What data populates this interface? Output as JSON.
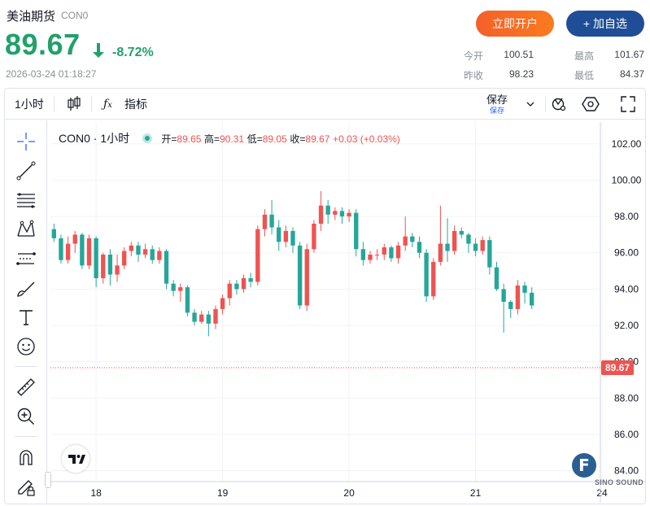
{
  "header": {
    "name": "美油期货",
    "code": "CON0",
    "price": "89.67",
    "change_pct": "-8.72%",
    "timestamp": "2026-03-24 01:18:27",
    "open_account_label": "立即开户",
    "add_watch_label": "+ 加自选",
    "stats": {
      "open_label": "今开",
      "open_value": "100.51",
      "prev_close_label": "昨收",
      "prev_close_value": "98.23",
      "high_label": "最高",
      "high_value": "101.67",
      "low_label": "最低",
      "low_value": "84.37"
    }
  },
  "toolbar": {
    "interval_label": "1小时",
    "indicators_label": "指标",
    "save_label": "保存",
    "save_sub_label": "保存"
  },
  "legend": {
    "symbol": "CON0 · 1小时",
    "open_label": "开=",
    "open_value": "89.65",
    "high_label": "高=",
    "high_value": "90.31",
    "low_label": "低=",
    "low_value": "89.05",
    "close_label": "收=",
    "close_value": "89.67",
    "change": "+0.03 (+0.03%)"
  },
  "watermark": {
    "brand_letter": "F",
    "brand_text": "SINO SOUND"
  },
  "colors": {
    "up": "#ef5350",
    "down": "#26a69a",
    "price_green": "#22a06b",
    "accent_orange": "#f3602b",
    "accent_blue": "#1f4e96"
  },
  "icons": [
    "crosshair-icon",
    "trend-line-icon",
    "fib-icon",
    "pattern-icon",
    "projection-icon",
    "brush-icon",
    "text-icon",
    "emoji-icon",
    "ruler-icon",
    "zoom-icon",
    "magnet-icon",
    "lock-pencil-icon",
    "candles-icon",
    "fx-icon",
    "chevron-down-icon",
    "camera-settings-icon",
    "hexagon-icon",
    "fullscreen-icon",
    "arrow-down-icon"
  ],
  "chart_data": {
    "type": "candlestick",
    "y_ticks": [
      "102.00",
      "100.00",
      "98.00",
      "96.00",
      "94.00",
      "92.00",
      "90.00",
      "88.00",
      "86.00",
      "84.00"
    ],
    "ylim": [
      83.4,
      103.2
    ],
    "x_ticks": [
      {
        "label": "18",
        "i": 6
      },
      {
        "label": "19",
        "i": 24
      },
      {
        "label": "20",
        "i": 42
      },
      {
        "label": "21",
        "i": 60
      },
      {
        "label": "24",
        "i": 78
      }
    ],
    "last_price_label": "89.67",
    "last_price": 89.67,
    "candles": [
      [
        97.3,
        96.8,
        97.6,
        96.6
      ],
      [
        96.8,
        95.6,
        97.0,
        95.4
      ],
      [
        95.6,
        96.5,
        96.9,
        95.4
      ],
      [
        96.5,
        97.0,
        97.2,
        96.0
      ],
      [
        97.0,
        95.3,
        97.1,
        95.1
      ],
      [
        95.3,
        96.8,
        97.0,
        95.1
      ],
      [
        96.8,
        94.6,
        96.9,
        94.1
      ],
      [
        94.6,
        95.9,
        96.0,
        94.3
      ],
      [
        95.9,
        94.8,
        96.2,
        94.2
      ],
      [
        94.8,
        95.3,
        95.9,
        94.4
      ],
      [
        95.3,
        96.1,
        96.3,
        95.1
      ],
      [
        96.1,
        96.4,
        96.6,
        95.8
      ],
      [
        96.4,
        95.9,
        96.6,
        95.5
      ],
      [
        95.9,
        96.2,
        96.5,
        95.7
      ],
      [
        96.2,
        95.6,
        96.4,
        95.4
      ],
      [
        95.6,
        96.1,
        96.3,
        95.4
      ],
      [
        96.1,
        94.3,
        96.2,
        94.0
      ],
      [
        94.3,
        93.9,
        94.5,
        93.6
      ],
      [
        93.9,
        94.1,
        94.3,
        93.3
      ],
      [
        94.1,
        92.7,
        94.2,
        92.5
      ],
      [
        92.7,
        92.2,
        92.9,
        92.0
      ],
      [
        92.2,
        92.6,
        92.8,
        92.1
      ],
      [
        92.6,
        92.1,
        92.8,
        91.4
      ],
      [
        92.1,
        92.9,
        93.1,
        91.8
      ],
      [
        92.9,
        93.5,
        93.7,
        92.6
      ],
      [
        93.5,
        94.3,
        94.5,
        93.1
      ],
      [
        94.3,
        94.0,
        94.5,
        93.7
      ],
      [
        94.0,
        94.6,
        94.8,
        93.8
      ],
      [
        94.6,
        94.4,
        94.9,
        94.1
      ],
      [
        94.4,
        97.3,
        97.5,
        94.2
      ],
      [
        97.3,
        98.1,
        98.4,
        96.9
      ],
      [
        98.1,
        97.4,
        98.9,
        97.0
      ],
      [
        97.4,
        96.6,
        97.8,
        96.1
      ],
      [
        96.6,
        97.2,
        97.5,
        96.3
      ],
      [
        97.2,
        96.4,
        97.4,
        96.0
      ],
      [
        96.4,
        93.1,
        96.6,
        92.9
      ],
      [
        93.1,
        96.2,
        96.5,
        92.8
      ],
      [
        96.2,
        97.6,
        97.8,
        96.0
      ],
      [
        97.6,
        98.6,
        99.4,
        97.2
      ],
      [
        98.6,
        98.1,
        98.9,
        97.6
      ],
      [
        98.1,
        98.3,
        98.5,
        97.8
      ],
      [
        98.3,
        98.0,
        98.5,
        97.6
      ],
      [
        98.0,
        98.2,
        98.4,
        97.7
      ],
      [
        98.2,
        96.2,
        98.4,
        95.8
      ],
      [
        96.2,
        95.6,
        96.6,
        95.3
      ],
      [
        95.6,
        95.9,
        96.1,
        95.4
      ],
      [
        95.9,
        95.9,
        96.2,
        95.6
      ],
      [
        95.9,
        96.3,
        96.5,
        95.6
      ],
      [
        96.3,
        95.7,
        96.4,
        95.5
      ],
      [
        95.7,
        96.4,
        96.6,
        95.4
      ],
      [
        96.4,
        96.9,
        98.0,
        96.1
      ],
      [
        96.9,
        96.6,
        97.1,
        96.3
      ],
      [
        96.6,
        96.0,
        96.9,
        95.7
      ],
      [
        96.0,
        93.6,
        96.2,
        93.3
      ],
      [
        93.6,
        95.5,
        95.7,
        93.4
      ],
      [
        95.5,
        96.5,
        98.6,
        95.3
      ],
      [
        96.5,
        96.1,
        97.9,
        95.5
      ],
      [
        96.1,
        97.2,
        97.5,
        95.9
      ],
      [
        97.2,
        97.0,
        97.4,
        96.8
      ],
      [
        97.0,
        96.5,
        97.1,
        96.0
      ],
      [
        96.5,
        96.1,
        96.8,
        95.8
      ],
      [
        96.1,
        96.7,
        96.9,
        95.9
      ],
      [
        96.7,
        95.2,
        96.9,
        94.8
      ],
      [
        95.2,
        94.0,
        95.5,
        93.9
      ],
      [
        94.0,
        93.3,
        94.3,
        91.6
      ],
      [
        93.3,
        92.9,
        93.4,
        92.4
      ],
      [
        92.9,
        94.2,
        94.5,
        92.6
      ],
      [
        94.2,
        93.8,
        94.4,
        93.2
      ],
      [
        93.8,
        93.1,
        94.1,
        92.9
      ]
    ]
  }
}
